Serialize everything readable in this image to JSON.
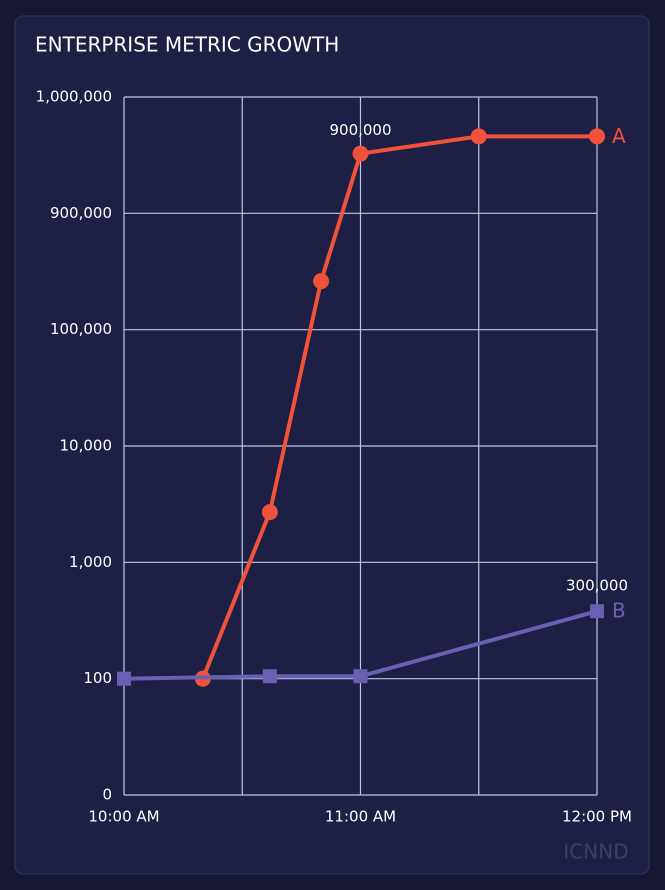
{
  "chart_data": {
    "type": "line",
    "title": "ENTERPRISE METRIC GROWTH",
    "watermark": "ICNND",
    "annotations": [
      "900,000",
      "300,000"
    ],
    "series": [
      {
        "name": "A",
        "color": "#f0533a",
        "marker": "circle",
        "x": [
          "10:20 AM",
          "10:37 AM",
          "10:50 AM",
          "11:00 AM",
          "11:30 AM",
          "12:00 PM"
        ],
        "values": [
          100,
          2700,
          250000,
          950000,
          965000,
          965000
        ]
      },
      {
        "name": "B",
        "color": "#6a5fb0",
        "marker": "square",
        "x": [
          "10:00 AM",
          "10:37 AM",
          "11:00 AM",
          "12:00 PM"
        ],
        "values": [
          100,
          105,
          105,
          380
        ]
      }
    ],
    "xlim": [
      "10:00 AM",
      "12:00 PM"
    ],
    "xticks": [
      "10:00 AM",
      "11:00 AM",
      "12:00 PM"
    ],
    "ylim": [
      0,
      1000000
    ],
    "yticks": [
      0,
      {
        "value": 100,
        "label": "100"
      },
      {
        "value": 1000,
        "label": "1,000"
      },
      {
        "value": 10000,
        "label": "10,000"
      },
      {
        "value": 100000,
        "label": "100,000"
      },
      {
        "value": 900000,
        "label": "900,000"
      },
      {
        "value": 1000000,
        "label": "1,000,000"
      }
    ],
    "grid": true
  }
}
